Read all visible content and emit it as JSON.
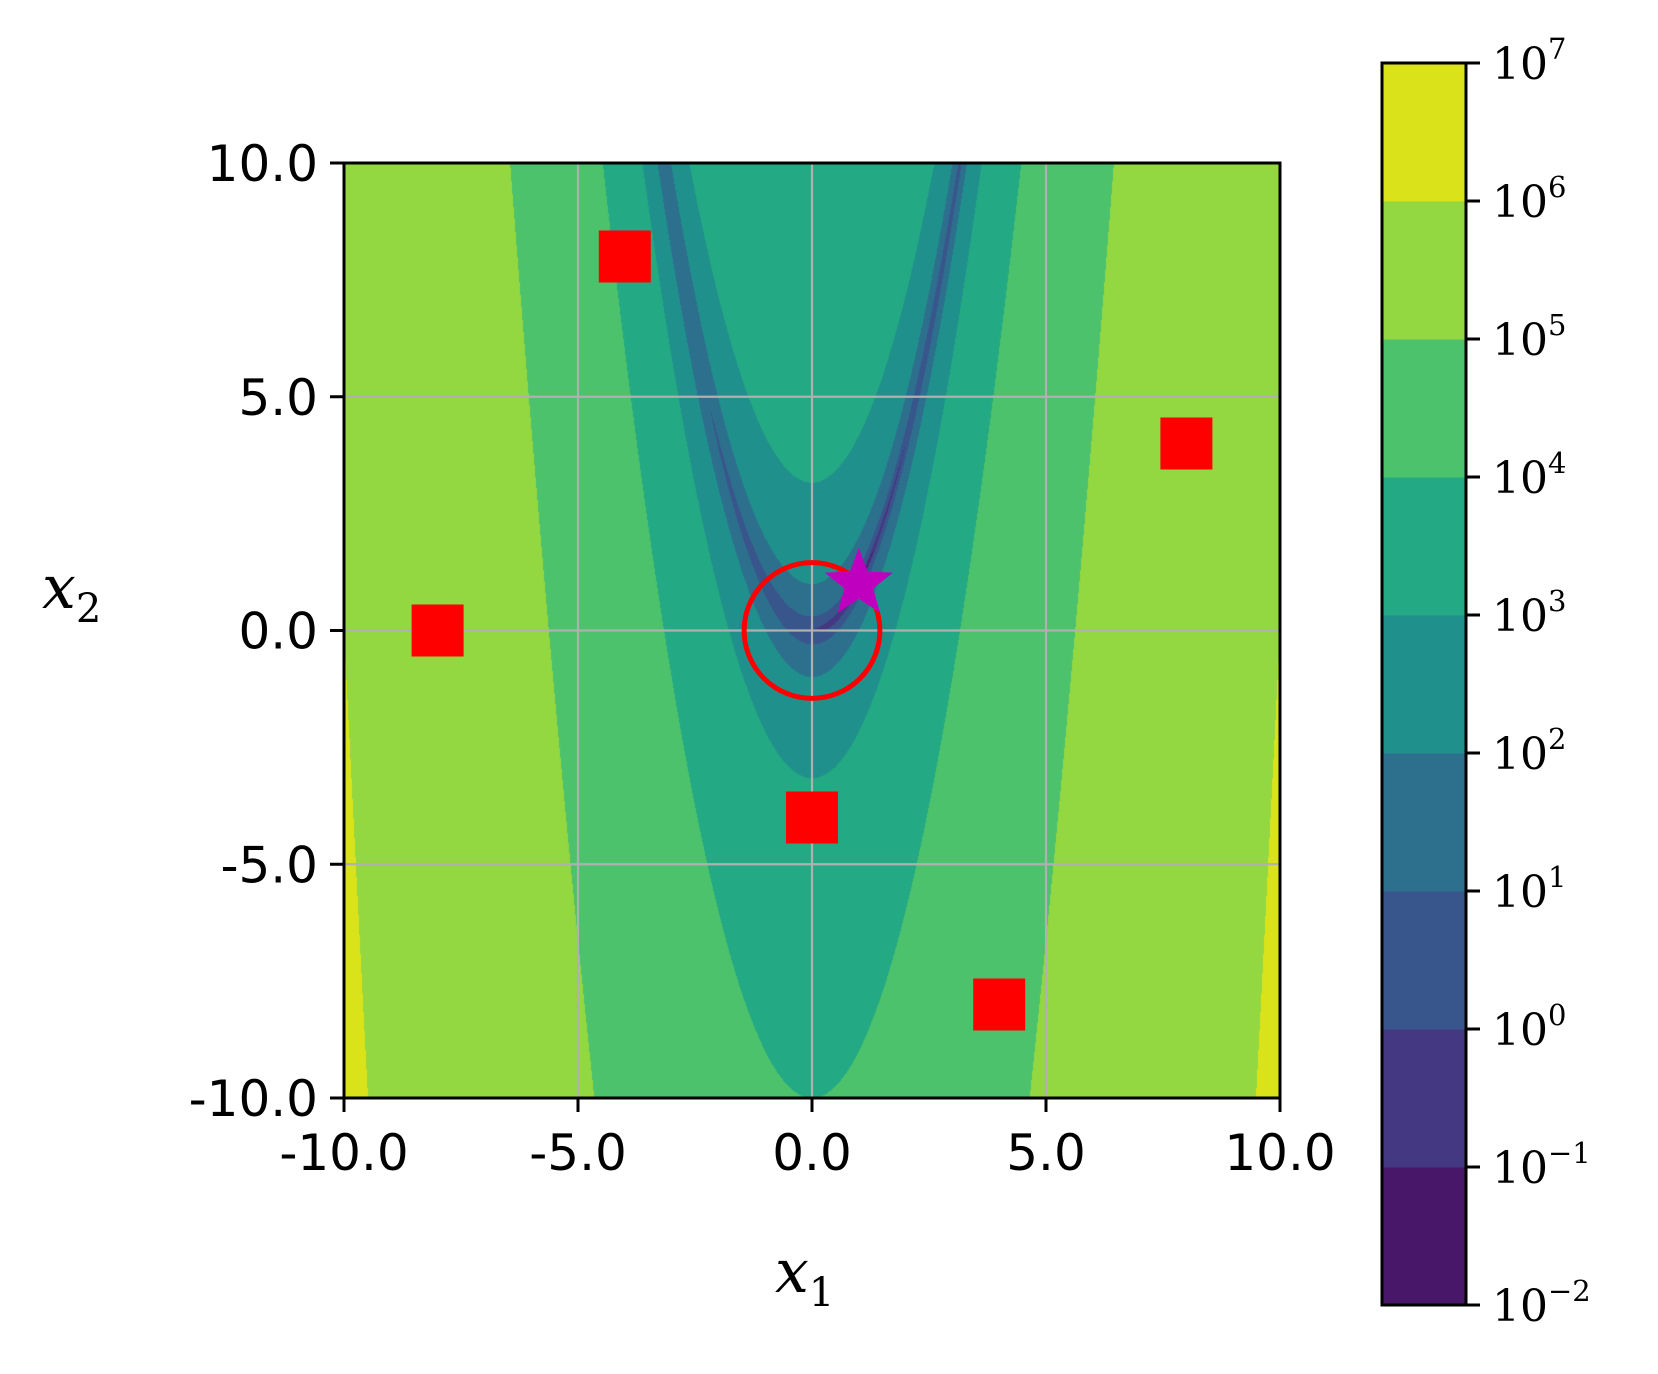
{
  "chart_data": {
    "type": "contour",
    "function": "rosenbrock",
    "scale": "log",
    "xlabel": "x",
    "xlabel_sub": "1",
    "ylabel": "x",
    "ylabel_sub": "2",
    "xlim": [
      -10,
      10
    ],
    "ylim": [
      -10,
      10
    ],
    "x_ticks": [
      -10,
      -5,
      0,
      5,
      10
    ],
    "y_ticks": [
      -10,
      -5,
      0,
      5,
      10
    ],
    "x_tick_labels": [
      "-10.0",
      "-5.0",
      "0.0",
      "5.0",
      "10.0"
    ],
    "y_tick_labels": [
      "-10.0",
      "-5.0",
      "0.0",
      "5.0",
      "10.0"
    ],
    "grid": true,
    "colorbar": {
      "base": "10",
      "exponents": [
        "−2",
        "−1",
        "0",
        "1",
        "2",
        "3",
        "4",
        "5",
        "6",
        "7"
      ],
      "level_exponents": [
        -2,
        -1,
        0,
        1,
        2,
        3,
        4,
        5,
        6,
        7
      ],
      "colors": [
        "#481769",
        "#453882",
        "#39568c",
        "#2d708e",
        "#20908c",
        "#23a983",
        "#4cc26c",
        "#93d741",
        "#dae319"
      ]
    },
    "markers": {
      "squares": [
        {
          "x": -8,
          "y": 0
        },
        {
          "x": -4,
          "y": 8
        },
        {
          "x": 0,
          "y": -4
        },
        {
          "x": 4,
          "y": -8
        },
        {
          "x": 8,
          "y": 4
        }
      ],
      "square_color": "#ff0000",
      "circle": {
        "x": 0,
        "y": 0,
        "radius": 1.45,
        "color": "#ff0000"
      },
      "star": {
        "x": 1,
        "y": 1,
        "color": "#bf00bf"
      }
    }
  }
}
